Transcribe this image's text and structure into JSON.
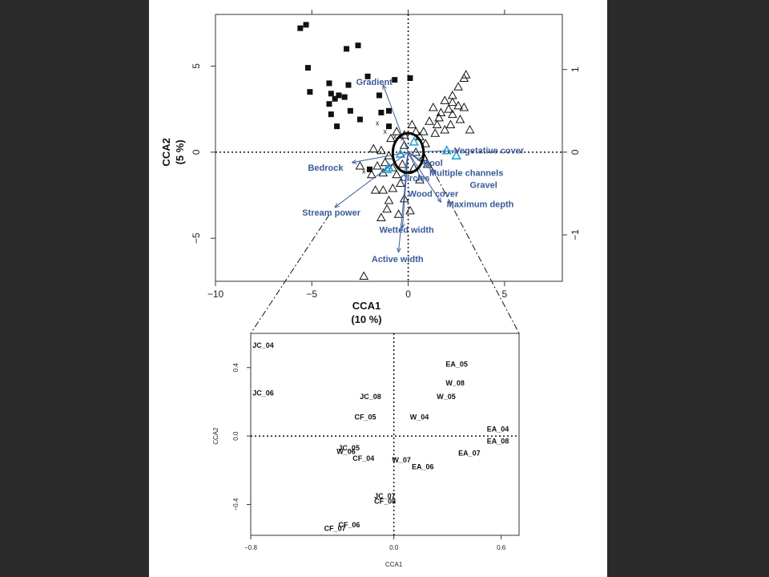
{
  "chart_data": [
    {
      "type": "scatter",
      "title": "",
      "xlabel": "CCA1\n(10 %)",
      "xlabel_lines": [
        "CCA1",
        "(10 %)"
      ],
      "ylabel_lines": [
        "CCA2",
        "(5 %)"
      ],
      "xlim": [
        -10,
        8
      ],
      "ylim": [
        -7.5,
        8
      ],
      "xticks": [
        "−10",
        "−5",
        "0",
        "5"
      ],
      "xtick_values": [
        -10,
        -5,
        0,
        5
      ],
      "yticks": [
        "−5",
        "0",
        "5"
      ],
      "ytick_values": [
        -5,
        0,
        5
      ],
      "top_ticks": [
        -5,
        0,
        5
      ],
      "right_ticks": [
        "−1",
        "0",
        "1"
      ],
      "right_tick_values": [
        -1,
        0,
        1
      ],
      "right_scale": 4.8,
      "marker_colors": {
        "sites_filled": "#111111",
        "sites_open": "#111111",
        "highlight_open": "#29a6d6",
        "arrows": "#3b5a9a"
      },
      "series": [
        {
          "marker": "filled-square",
          "points": [
            [
              -5.6,
              7.2
            ],
            [
              -5.3,
              7.4
            ],
            [
              -3.2,
              6.0
            ],
            [
              -2.6,
              6.2
            ],
            [
              -5.2,
              4.9
            ],
            [
              -4.1,
              4.0
            ],
            [
              -5.1,
              3.5
            ],
            [
              -4.0,
              3.4
            ],
            [
              -3.6,
              3.3
            ],
            [
              -3.1,
              3.9
            ],
            [
              -2.1,
              4.4
            ],
            [
              -4.1,
              2.8
            ],
            [
              -3.8,
              3.1
            ],
            [
              -3.3,
              3.2
            ],
            [
              -1.5,
              3.3
            ],
            [
              -0.7,
              4.2
            ],
            [
              0.1,
              4.3
            ],
            [
              -4.0,
              2.2
            ],
            [
              -3.0,
              2.4
            ],
            [
              -2.5,
              1.9
            ],
            [
              -1.4,
              2.3
            ],
            [
              -1.0,
              2.4
            ],
            [
              -3.7,
              1.5
            ],
            [
              -1.0,
              1.5
            ],
            [
              -2.0,
              -1.0
            ]
          ]
        },
        {
          "marker": "open-triangle",
          "points": [
            [
              3.0,
              4.5
            ],
            [
              2.9,
              4.3
            ],
            [
              2.6,
              3.8
            ],
            [
              2.3,
              3.3
            ],
            [
              1.9,
              3.0
            ],
            [
              2.3,
              2.9
            ],
            [
              2.6,
              2.7
            ],
            [
              2.1,
              2.5
            ],
            [
              1.7,
              2.3
            ],
            [
              1.3,
              2.6
            ],
            [
              1.6,
              2.0
            ],
            [
              2.7,
              1.9
            ],
            [
              2.2,
              1.6
            ],
            [
              3.2,
              1.3
            ],
            [
              1.9,
              1.3
            ],
            [
              1.4,
              1.1
            ],
            [
              0.8,
              1.2
            ],
            [
              0.6,
              0.9
            ],
            [
              0.9,
              0.5
            ],
            [
              0.2,
              1.6
            ],
            [
              0.4,
              1.2
            ],
            [
              -0.6,
              1.2
            ],
            [
              -0.9,
              0.8
            ],
            [
              -0.2,
              0.4
            ],
            [
              0.4,
              0.0
            ],
            [
              0.8,
              -0.3
            ],
            [
              1.0,
              -0.7
            ],
            [
              0.3,
              -0.9
            ],
            [
              -0.3,
              -0.7
            ],
            [
              -1.0,
              -0.2
            ],
            [
              -1.4,
              0.1
            ],
            [
              -1.8,
              0.2
            ],
            [
              -1.2,
              -0.6
            ],
            [
              -0.8,
              -0.9
            ],
            [
              -1.6,
              -0.8
            ],
            [
              -1.3,
              -1.2
            ],
            [
              -0.6,
              -1.3
            ],
            [
              -0.4,
              -1.8
            ],
            [
              -0.8,
              -2.1
            ],
            [
              -1.3,
              -2.2
            ],
            [
              -1.7,
              -2.2
            ],
            [
              -1.0,
              -2.8
            ],
            [
              -0.2,
              -2.7
            ],
            [
              -1.1,
              -3.3
            ],
            [
              0.1,
              -3.4
            ],
            [
              -1.4,
              -3.8
            ],
            [
              -2.3,
              -7.2
            ],
            [
              2.3,
              2.2
            ],
            [
              1.1,
              1.8
            ],
            [
              -0.2,
              1.0
            ],
            [
              -2.5,
              -0.8
            ],
            [
              -1.9,
              -1.3
            ],
            [
              0.6,
              -1.6
            ],
            [
              -0.5,
              -3.6
            ],
            [
              1.5,
              1.6
            ],
            [
              2.9,
              2.6
            ]
          ]
        },
        {
          "marker": "highlight-triangle",
          "points": [
            [
              2.0,
              0.1
            ],
            [
              2.5,
              -0.2
            ],
            [
              -1.0,
              -0.9
            ],
            [
              0.3,
              0.6
            ],
            [
              -0.4,
              -0.1
            ],
            [
              -1.1,
              -1.0
            ]
          ]
        },
        {
          "marker": "x",
          "points": [
            [
              -1.6,
              1.7
            ],
            [
              -1.2,
              1.2
            ],
            [
              -0.7,
              0.9
            ],
            [
              -0.3,
              0.8
            ],
            [
              -2.3,
              -1.1
            ]
          ]
        }
      ],
      "arrows": [
        {
          "label": "Gradient",
          "end": [
            -1.3,
            3.9
          ],
          "label_at": [
            -2.7,
            4.1
          ]
        },
        {
          "label": "Bedrock",
          "end": [
            -2.9,
            -0.6
          ],
          "label_at": [
            -5.2,
            -0.9
          ]
        },
        {
          "label": "Stream power",
          "end": [
            -3.8,
            -3.2
          ],
          "label_at": [
            -5.5,
            -3.5
          ]
        },
        {
          "label": "Vegetative cover",
          "end": [
            2.6,
            0.1
          ],
          "label_at": [
            2.4,
            0.1
          ]
        },
        {
          "label": "Pool",
          "end": [
            0.7,
            -0.5
          ],
          "label_at": [
            0.8,
            -0.6
          ]
        },
        {
          "label": "Multiple channels",
          "end": [
            1.1,
            -0.8
          ],
          "label_at": [
            1.1,
            -1.2
          ]
        },
        {
          "label": "Gravel",
          "end": [
            1.4,
            -1.2
          ],
          "label_at": [
            3.2,
            -1.9
          ]
        },
        {
          "label": "Circles",
          "end": [
            -0.2,
            -1.3
          ],
          "label_at": [
            -0.4,
            -1.5
          ]
        },
        {
          "label": "Wood cover",
          "end": [
            0.7,
            -1.6
          ],
          "label_at": [
            0.0,
            -2.4
          ]
        },
        {
          "label": "Maximum depth",
          "end": [
            1.7,
            -2.9
          ],
          "label_at": [
            2.0,
            -3.0
          ]
        },
        {
          "label": "Wetted width",
          "end": [
            -0.3,
            -4.4
          ],
          "label_at": [
            -1.5,
            -4.5
          ]
        },
        {
          "label": "Active width",
          "end": [
            -0.5,
            -5.8
          ],
          "label_at": [
            -1.9,
            -6.2
          ]
        }
      ],
      "ellipse": {
        "center": [
          0.0,
          -0.05
        ],
        "radius_x": 0.8,
        "radius_y": 1.15
      }
    },
    {
      "type": "scatter",
      "title": "",
      "xlabel": "CCA1",
      "ylabel": "CCA2",
      "xlim": [
        -0.8,
        0.7
      ],
      "ylim": [
        -0.58,
        0.6
      ],
      "xticks": [
        "−0.8",
        "0.0",
        "0.6"
      ],
      "xtick_values": [
        -0.8,
        0.0,
        0.6
      ],
      "yticks": [
        "−0.4",
        "0.0",
        "0.4"
      ],
      "ytick_values": [
        -0.4,
        0.0,
        0.4
      ],
      "labels": [
        {
          "text": "JC_04",
          "x": -0.79,
          "y": 0.53
        },
        {
          "text": "JC_06",
          "x": -0.79,
          "y": 0.25
        },
        {
          "text": "JC_08",
          "x": -0.19,
          "y": 0.23
        },
        {
          "text": "CF_05",
          "x": -0.22,
          "y": 0.11
        },
        {
          "text": "W_04",
          "x": 0.09,
          "y": 0.11
        },
        {
          "text": "EA_05",
          "x": 0.29,
          "y": 0.42
        },
        {
          "text": "W_08",
          "x": 0.29,
          "y": 0.31
        },
        {
          "text": "W_05",
          "x": 0.24,
          "y": 0.23
        },
        {
          "text": "EA_04",
          "x": 0.52,
          "y": 0.04
        },
        {
          "text": "EA_08",
          "x": 0.52,
          "y": -0.03
        },
        {
          "text": "EA_07",
          "x": 0.36,
          "y": -0.1
        },
        {
          "text": "JC_05",
          "x": -0.31,
          "y": -0.07
        },
        {
          "text": "W_06",
          "x": -0.32,
          "y": -0.09
        },
        {
          "text": "CF_04",
          "x": -0.23,
          "y": -0.13
        },
        {
          "text": "W_07",
          "x": -0.01,
          "y": -0.14
        },
        {
          "text": "EA_06",
          "x": 0.1,
          "y": -0.18
        },
        {
          "text": "JC_07",
          "x": -0.11,
          "y": -0.35
        },
        {
          "text": "CF_08",
          "x": -0.11,
          "y": -0.38
        },
        {
          "text": "CF_06",
          "x": -0.31,
          "y": -0.52
        },
        {
          "text": "CF_07",
          "x": -0.39,
          "y": -0.54
        }
      ]
    }
  ]
}
